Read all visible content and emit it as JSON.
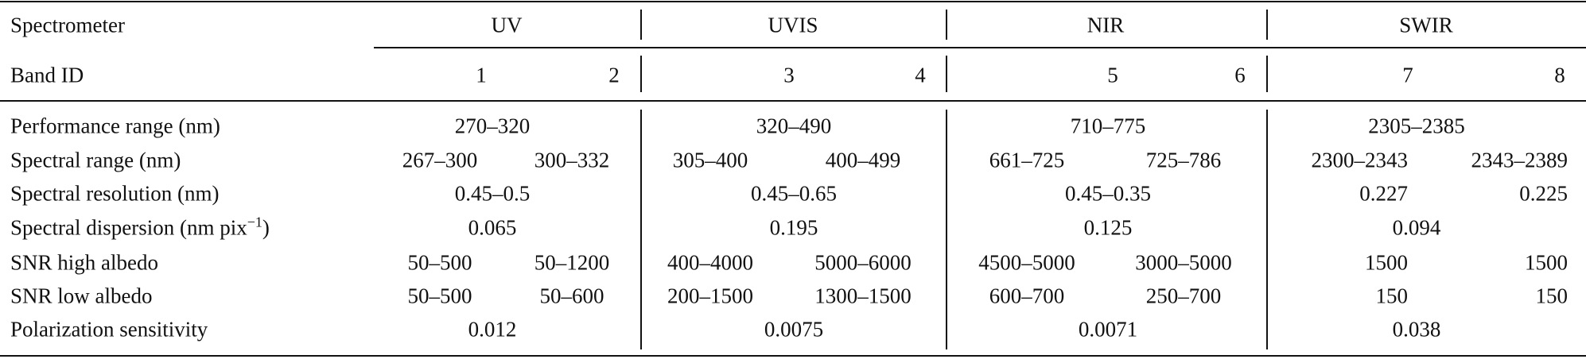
{
  "table": {
    "header": {
      "spectrometer_label": "Spectrometer",
      "spectrometers": [
        "UV",
        "UVIS",
        "NIR",
        "SWIR"
      ],
      "band_label": "Band ID",
      "bands": [
        "1",
        "2",
        "3",
        "4",
        "5",
        "6",
        "7",
        "8"
      ]
    },
    "rows": [
      {
        "label": "Performance range (nm)",
        "groups": [
          [
            "270–320"
          ],
          [
            "320–490"
          ],
          [
            "710–775"
          ],
          [
            "2305–2385"
          ]
        ]
      },
      {
        "label": "Spectral range (nm)",
        "groups": [
          [
            "267–300",
            "300–332"
          ],
          [
            "305–400",
            "400–499"
          ],
          [
            "661–725",
            "725–786"
          ],
          [
            "2300–2343",
            "2343–2389"
          ]
        ]
      },
      {
        "label": "Spectral resolution (nm)",
        "groups": [
          [
            "0.45–0.5"
          ],
          [
            "0.45–0.65"
          ],
          [
            "0.45–0.35"
          ],
          [
            "0.227",
            "0.225"
          ]
        ]
      },
      {
        "label": "Spectral dispersion (nm pix",
        "label_sup": "−1",
        "label_end": ")",
        "groups": [
          [
            "0.065"
          ],
          [
            "0.195"
          ],
          [
            "0.125"
          ],
          [
            "0.094"
          ]
        ]
      },
      {
        "label": "SNR high albedo",
        "groups": [
          [
            "50–500",
            "50–1200"
          ],
          [
            "400–4000",
            "5000–6000"
          ],
          [
            "4500–5000",
            "3000–5000"
          ],
          [
            "1500",
            "1500"
          ]
        ]
      },
      {
        "label": "SNR low albedo",
        "groups": [
          [
            "50–500",
            "50–600"
          ],
          [
            "200–1500",
            "1300–1500"
          ],
          [
            "600–700",
            "250–700"
          ],
          [
            "150",
            "150"
          ]
        ]
      },
      {
        "label": "Polarization sensitivity",
        "groups": [
          [
            "0.012"
          ],
          [
            "0.0075"
          ],
          [
            "0.0071"
          ],
          [
            "0.038"
          ]
        ]
      }
    ]
  }
}
